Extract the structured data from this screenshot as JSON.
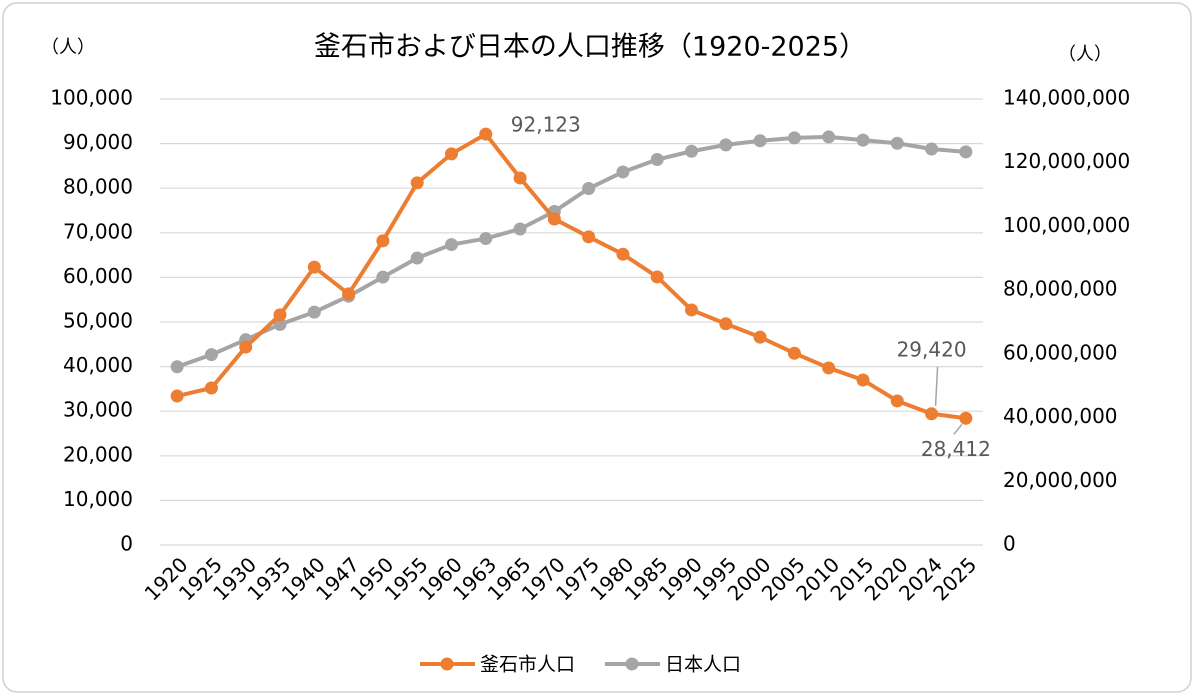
{
  "chart_data": {
    "type": "line",
    "title": "釜石市および日本の人口推移（1920-2025）",
    "y_unit_label": "（人）",
    "y2_unit_label": "（人）",
    "categories": [
      "1920",
      "1925",
      "1930",
      "1935",
      "1940",
      "1947",
      "1950",
      "1955",
      "1960",
      "1963",
      "1965",
      "1970",
      "1975",
      "1980",
      "1985",
      "1990",
      "1995",
      "2000",
      "2005",
      "2010",
      "2015",
      "2020",
      "2024",
      "2025"
    ],
    "series": [
      {
        "name": "釜石市人口",
        "color": "#ed7d31",
        "axis": "y",
        "values": [
          33400,
          35200,
          44400,
          51600,
          62300,
          56300,
          68200,
          81200,
          87700,
          92123,
          82300,
          73100,
          69100,
          65200,
          60100,
          52700,
          49600,
          46600,
          43000,
          39700,
          37000,
          32300,
          29420,
          28412
        ],
        "value_labels": [
          null,
          null,
          null,
          null,
          null,
          null,
          null,
          null,
          null,
          "92,123",
          null,
          null,
          null,
          null,
          null,
          null,
          null,
          null,
          null,
          null,
          null,
          null,
          "29,420",
          "28,412"
        ]
      },
      {
        "name": "日本人口",
        "color": "#a5a5a5",
        "axis": "y2",
        "values": [
          55960000,
          59740000,
          64450000,
          69250000,
          73100000,
          78100000,
          84100000,
          90100000,
          94300000,
          96200000,
          99200000,
          104700000,
          111900000,
          117100000,
          121000000,
          123600000,
          125600000,
          126900000,
          127800000,
          128100000,
          127100000,
          126100000,
          124300000,
          123400000
        ]
      }
    ],
    "ylim": [
      0,
      100000
    ],
    "yticks": [
      0,
      {
        "value": 10000,
        "label": "10,000"
      },
      {
        "value": 20000,
        "label": "20,000"
      },
      {
        "value": 30000,
        "label": "30,000"
      },
      {
        "value": 40000,
        "label": "40,000"
      },
      {
        "value": 50000,
        "label": "50,000"
      },
      {
        "value": 60000,
        "label": "60,000"
      },
      {
        "value": 70000,
        "label": "70,000"
      },
      {
        "value": 80000,
        "label": "80,000"
      },
      {
        "value": 90000,
        "label": "90,000"
      },
      {
        "value": 100000,
        "label": "100,000"
      }
    ],
    "y2lim": [
      0,
      140000000
    ],
    "y2ticks": [
      0,
      {
        "value": 20000000,
        "label": "20,000,000"
      },
      {
        "value": 40000000,
        "label": "40,000,000"
      },
      {
        "value": 60000000,
        "label": "60,000,000"
      },
      {
        "value": 80000000,
        "label": "80,000,000"
      },
      {
        "value": 100000000,
        "label": "100,000,000"
      },
      {
        "value": 120000000,
        "label": "120,000,000"
      },
      {
        "value": 140000000,
        "label": "140,000,000"
      }
    ],
    "grid": true,
    "legend": "bottom"
  }
}
